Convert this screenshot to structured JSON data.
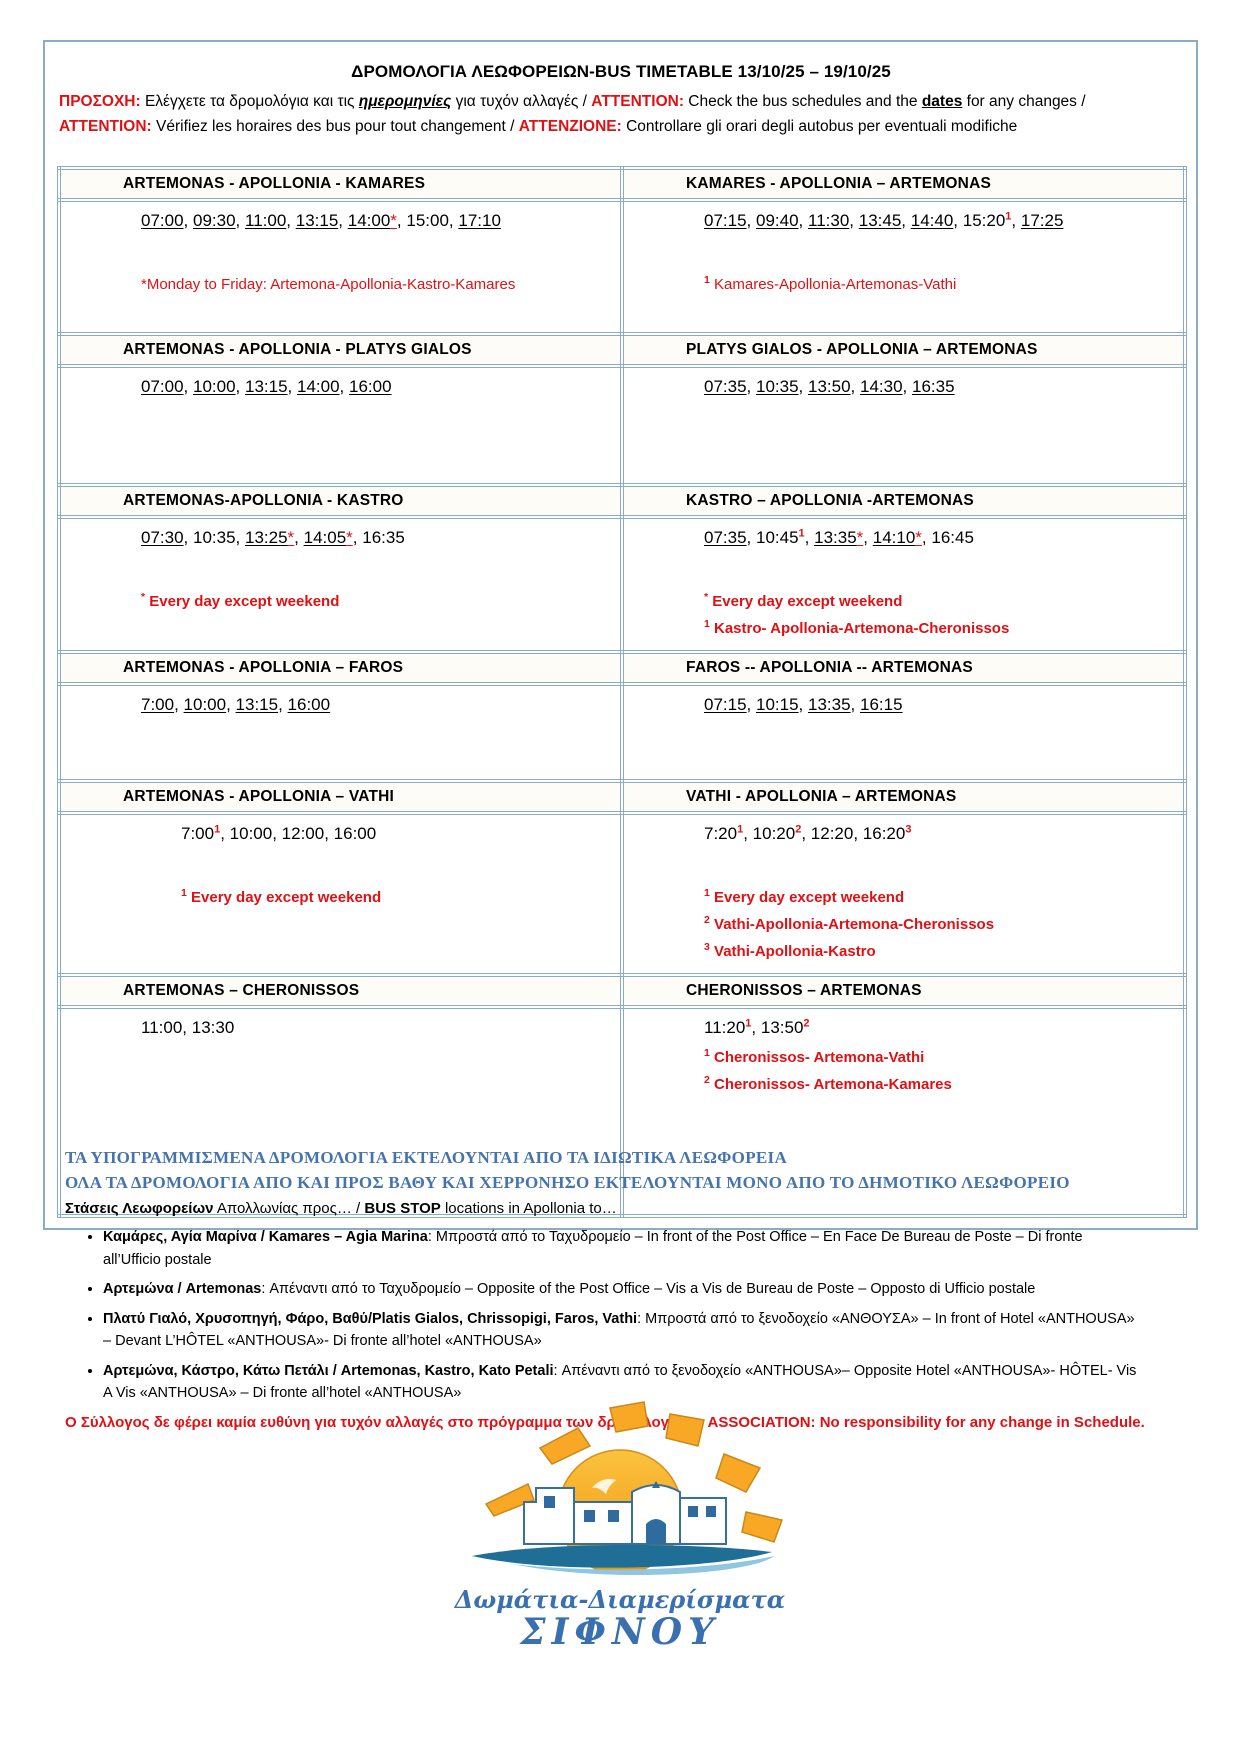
{
  "header": {
    "title": "ΔΡΟΜΟΛΟΓΙΑ ΛΕΩΦΟΡΕΙΩΝ-BUS TIMETABLE 13/10/25 – 19/10/25",
    "attention": {
      "gr_label": "ΠΡΟΣΟΧΗ:",
      "gr_pre": " Ελέγχετε τα δρομολόγια και τις ",
      "gr_word": "ημερομηνίες",
      "gr_post": " για τυχόν αλλαγές / ",
      "en_label": "ATTENTION:",
      "en_pre": " Check the bus schedules and the ",
      "en_word": "dates",
      "en_post": " for any changes /",
      "fr_label": "ATTENTION:",
      "fr_text": " Vérifiez les horaires des bus pour tout changement / ",
      "it_label": "ATTENZIONE:",
      "it_text": " Controllare gli orari degli autobus per eventuali modifiche"
    }
  },
  "rows": [
    {
      "left": {
        "header": "ARTEMONAS - APOLLONIA - KAMARES",
        "times": [
          {
            "t": "07:00",
            "u": true
          },
          {
            "t": "09:30",
            "u": true
          },
          {
            "t": "11:00",
            "u": true
          },
          {
            "t": "13:15",
            "u": true
          },
          {
            "t": "14:00",
            "u": true,
            "star": true
          },
          {
            "t": "15:00",
            "u": false
          },
          {
            "t": "17:10",
            "u": true
          }
        ],
        "notes": [
          {
            "sym": "*",
            "raised": false,
            "text": "Monday to Friday: Artemona-Apollonia-Kastro-Kamares",
            "bold": false
          }
        ]
      },
      "right": {
        "header": "KAMARES - APOLLONIA – ARTEMONAS",
        "times": [
          {
            "t": "07:15",
            "u": true
          },
          {
            "t": "09:40",
            "u": true
          },
          {
            "t": "11:30",
            "u": true
          },
          {
            "t": "13:45",
            "u": true
          },
          {
            "t": "14:40",
            "u": true
          },
          {
            "t": "15:20",
            "u": false,
            "sup": "1"
          },
          {
            "t": "17:25",
            "u": true
          }
        ],
        "notes": [
          {
            "sym": "1",
            "raised": true,
            "text": "Kamares-Apollonia-Artemonas-Vathi",
            "bold": false
          }
        ]
      }
    },
    {
      "left": {
        "header": "ARTEMONAS - APOLLONIA - PLATYS GIALOS",
        "times": [
          {
            "t": "07:00",
            "u": true
          },
          {
            "t": "10:00",
            "u": true
          },
          {
            "t": "13:15",
            "u": true
          },
          {
            "t": "14:00",
            "u": true
          },
          {
            "t": "16:00",
            "u": true
          }
        ],
        "notes": []
      },
      "right": {
        "header": "PLATYS GIALOS - APOLLONIA – ARTEMONAS",
        "times": [
          {
            "t": "07:35",
            "u": true
          },
          {
            "t": "10:35",
            "u": true
          },
          {
            "t": "13:50",
            "u": true
          },
          {
            "t": "14:30",
            "u": true
          },
          {
            "t": "16:35",
            "u": true
          }
        ],
        "notes": []
      }
    },
    {
      "left": {
        "header": "ARTEMONAS-APOLLONIA - KASTRO",
        "times": [
          {
            "t": "07:30",
            "u": true
          },
          {
            "t": "10:35",
            "u": false
          },
          {
            "t": "13:25",
            "u": true,
            "star": true
          },
          {
            "t": "14:05",
            "u": true,
            "star": true
          },
          {
            "t": "16:35",
            "u": false
          }
        ],
        "notes": [
          {
            "sym": "*",
            "raised": true,
            "text": "Every day except weekend",
            "bold": true
          }
        ]
      },
      "right": {
        "header": "KASTRO – APOLLONIA -ARTEMONAS",
        "times": [
          {
            "t": "07:35",
            "u": true
          },
          {
            "t": "10:45",
            "u": false,
            "sup": "1"
          },
          {
            "t": "13:35",
            "u": true,
            "star": true
          },
          {
            "t": "14:10",
            "u": true,
            "star": true
          },
          {
            "t": "16:45",
            "u": false
          }
        ],
        "notes": [
          {
            "sym": "*",
            "raised": true,
            "text": "Every day except weekend",
            "bold": true
          },
          {
            "sym": "1",
            "raised": true,
            "text": "Kastro- Apollonia-Artemona-Cheronissos",
            "bold": true
          }
        ]
      }
    },
    {
      "left": {
        "header": "ARTEMONAS - APOLLONIA – FAROS",
        "times": [
          {
            "t": "7:00",
            "u": true
          },
          {
            "t": "10:00",
            "u": true
          },
          {
            "t": "13:15",
            "u": true
          },
          {
            "t": "16:00",
            "u": true
          }
        ],
        "notes": []
      },
      "right": {
        "header": "FAROS -- APOLLONIA -- ARTEMONAS",
        "times": [
          {
            "t": "07:15",
            "u": true
          },
          {
            "t": "10:15",
            "u": true
          },
          {
            "t": "13:35",
            "u": true
          },
          {
            "t": "16:15",
            "u": true
          }
        ],
        "notes": []
      }
    },
    {
      "left": {
        "header": "ARTEMONAS - APOLLONIA – VATHI",
        "times": [
          {
            "t": "7:00",
            "u": false,
            "sup": "1"
          },
          {
            "t": "10:00",
            "u": false
          },
          {
            "t": "12:00",
            "u": false
          },
          {
            "t": "16:00",
            "u": false
          }
        ],
        "notes": [
          {
            "sym": "1",
            "raised": true,
            "text": "Every day except weekend",
            "bold": true
          }
        ]
      },
      "right": {
        "header": "VATHI - APOLLONIA – ARTEMONAS",
        "times": [
          {
            "t": "7:20",
            "u": false,
            "sup": "1"
          },
          {
            "t": "10:20",
            "u": false,
            "sup": "2"
          },
          {
            "t": "12:20",
            "u": false
          },
          {
            "t": "16:20",
            "u": false,
            "sup": "3"
          }
        ],
        "notes": [
          {
            "sym": "1",
            "raised": true,
            "text": "Every day except weekend",
            "bold": true
          },
          {
            "sym": "2",
            "raised": true,
            "text": "Vathi-Apollonia-Artemona-Cheronissos",
            "bold": true
          },
          {
            "sym": "3",
            "raised": true,
            "text": "Vathi-Apollonia-Kastro",
            "bold": true
          }
        ]
      }
    },
    {
      "left": {
        "header": "ARTEMONAS – CHERONISSOS",
        "times": [
          {
            "t": "11:00",
            "u": false
          },
          {
            "t": "13:30",
            "u": false
          }
        ],
        "notes": []
      },
      "right": {
        "header": "CHERONISSOS – ARTEMONAS",
        "times": [
          {
            "t": "11:20",
            "u": false,
            "sup": "1"
          },
          {
            "t": "13:50",
            "u": false,
            "sup": "2"
          }
        ],
        "notes": [
          {
            "sym": "1",
            "raised": true,
            "text": "Cheronissos- Artemona-Vathi",
            "bold": true
          },
          {
            "sym": "2",
            "raised": true,
            "text": "Cheronissos- Artemona-Kamares",
            "bold": true
          }
        ]
      }
    }
  ],
  "footer": {
    "private_notice": "ΤΑ ΥΠΟΓΡΑΜΜΙΣΜΕΝΑ ΔΡΟΜΟΛΟΓΙΑ ΕΚΤΕΛΟΥΝΤΑΙ ΑΠΟ ΤΑ ΙΔΙΩΤΙΚΑ ΛΕΩΦΟΡΕΙΑ",
    "municipal_notice": "ΟΛΑ ΤΑ ΔΡΟΜΟΛΟΓΙΑ ΑΠΟ ΚΑΙ ΠΡΟΣ ΒΑΘΥ ΚΑΙ ΧΕΡΡΟΝΗΣΟ ΕΚΤΕΛΟΥΝΤΑΙ ΜΟΝΟ ΑΠΟ ΤΟ ΔΗΜΟΤΙΚΟ ΛΕΩΦΟΡΕΙΟ",
    "intro_gr_bold": "Στάσεις Λεωφορείων",
    "intro_gr_rest": " Απολλωνίας προς… / ",
    "intro_en_bold": "BUS STOP",
    "intro_en_rest": " locations in Apollonia to…",
    "bullets": [
      {
        "bold": "Καμάρες, Αγία Μαρίνα / Kamares – Agia Marina",
        "rest": ":  Μπροστά από το Ταχυδρομείο –  In front of the Post Office – En Face De Bureau de Poste – Di fronte all’Ufficio postale"
      },
      {
        "bold": "Αρτεμώνα / Artemonas",
        "rest": ": Απέναντι από το Ταχυδρομείο –  Opposite of the Post Office – Vis a Vis de Bureau de Poste – Opposto di Ufficio postale"
      },
      {
        "bold": "Πλατύ Γιαλό, Χρυσοπηγή, Φάρο, Βαθύ/Platis Gialos, Chrissopigi, Faros, Vathi",
        "rest": ": Μπροστά από το ξενοδοχείο «ΑΝΘΟΥΣΑ» – In front of Hotel «ANTHOUSA» – Devant L’HÔTEL «ANTHOUSA»- Di fronte all’hotel «ANTHOUSA»"
      },
      {
        "bold": "Αρτεμώνα, Κάστρο, Κάτω Πετάλι / Artemonas, Kastro, Kato Petali",
        "rest": ": Απέναντι από το ξενοδοχείο «ANTHOUSA»– Opposite Hotel «ANTHOUSA»-  HÔTEL- Vis A Vis «ANTHOUSA» – Di fronte all’hotel «ANTHOUSA»"
      }
    ],
    "disclaimer": "Ο Σύλλογος δε φέρει καμία ευθύνη για τυχόν αλλαγές στο πρόγραμμα των δρομολογίων - ASSOCIATION: No responsibility for any change in Schedule."
  },
  "logo": {
    "line1": "Δωμάτια-Διαμερίσματα",
    "line2": "ΣΙΦΝΟΥ"
  },
  "colors": {
    "frame_blue": "#8aadc7",
    "accent_red": "#e01114",
    "notice_blue": "#4573ac"
  }
}
